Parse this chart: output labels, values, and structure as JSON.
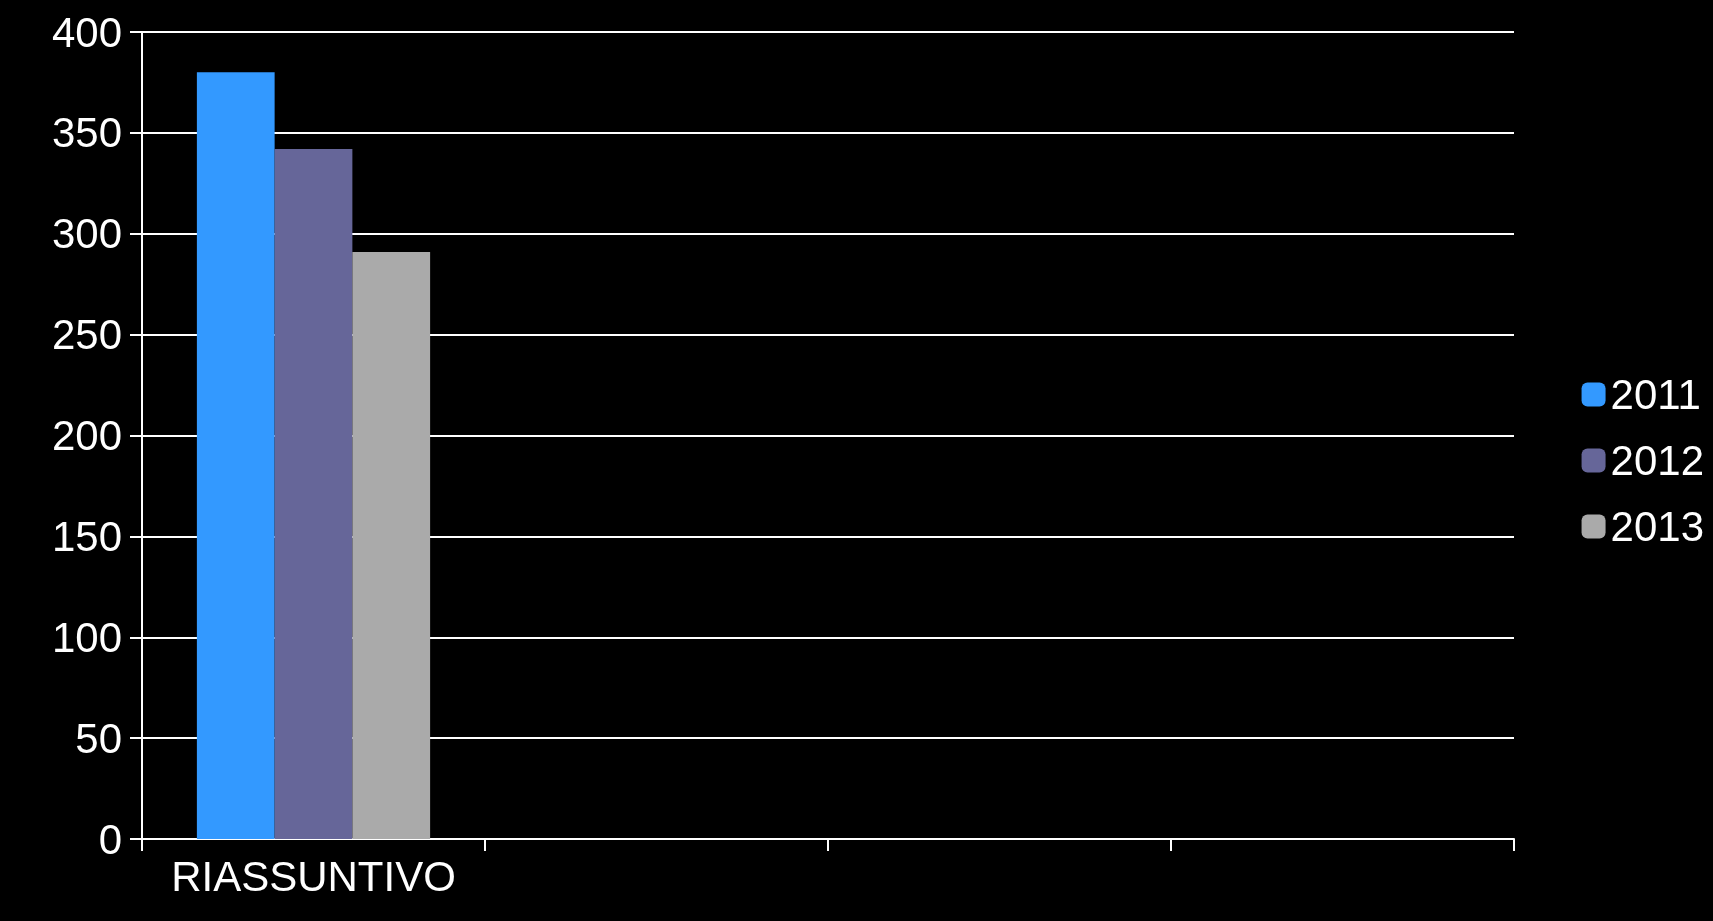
{
  "chart_data": {
    "type": "bar",
    "categories": [
      "RIASSUNTIVO",
      null,
      null,
      null
    ],
    "series": [
      {
        "name": "2011",
        "color": "#3399ff",
        "values": [
          380,
          null,
          null,
          null
        ]
      },
      {
        "name": "2012",
        "color": "#666699",
        "values": [
          342,
          null,
          null,
          null
        ]
      },
      {
        "name": "2013",
        "color": "#aaaaaa",
        "values": [
          291,
          null,
          null,
          null
        ]
      }
    ],
    "ylim": [
      0,
      400
    ],
    "yticks": [
      0,
      50,
      100,
      150,
      200,
      250,
      300,
      350,
      400
    ],
    "grid": "y",
    "legend": "right"
  }
}
